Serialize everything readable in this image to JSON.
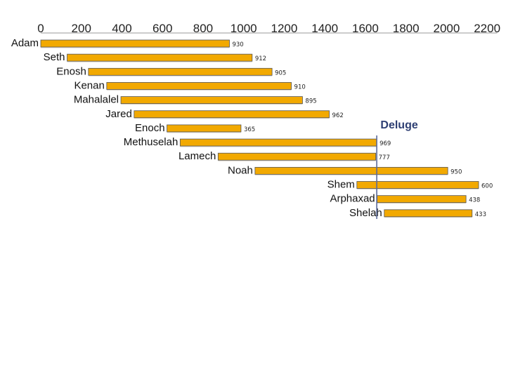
{
  "chart_data": {
    "type": "bar",
    "orientation": "horizontal-timeline",
    "title": "",
    "xlabel": "",
    "ylabel": "",
    "xlim": [
      0,
      2250
    ],
    "x_ticks": [
      "0",
      "200",
      "400",
      "600",
      "800",
      "1000",
      "1200",
      "1400",
      "1600",
      "1800",
      "2000",
      "2200"
    ],
    "x_tick_values": [
      0,
      200,
      400,
      600,
      800,
      1000,
      1200,
      1400,
      1600,
      1800,
      2000,
      2200
    ],
    "bar_color": "#f2a900",
    "bar_edge_color": "#555555",
    "event_line_color": "#5a6a9a",
    "series": [
      {
        "name": "Adam",
        "start": 0,
        "lifespan": 930,
        "label": "930"
      },
      {
        "name": "Seth",
        "start": 130,
        "lifespan": 912,
        "label": "912"
      },
      {
        "name": "Enosh",
        "start": 235,
        "lifespan": 905,
        "label": "905"
      },
      {
        "name": "Kenan",
        "start": 325,
        "lifespan": 910,
        "label": "910"
      },
      {
        "name": "Mahalalel",
        "start": 395,
        "lifespan": 895,
        "label": "895"
      },
      {
        "name": "Jared",
        "start": 460,
        "lifespan": 962,
        "label": "962"
      },
      {
        "name": "Enoch",
        "start": 622,
        "lifespan": 365,
        "label": "365"
      },
      {
        "name": "Methuselah",
        "start": 687,
        "lifespan": 969,
        "label": "969"
      },
      {
        "name": "Lamech",
        "start": 874,
        "lifespan": 777,
        "label": "777"
      },
      {
        "name": "Noah",
        "start": 1056,
        "lifespan": 950,
        "label": "950"
      },
      {
        "name": "Shem",
        "start": 1558,
        "lifespan": 600,
        "label": "600"
      },
      {
        "name": "Arphaxad",
        "start": 1658,
        "lifespan": 438,
        "label": "438"
      },
      {
        "name": "Shelah",
        "start": 1693,
        "lifespan": 433,
        "label": "433"
      }
    ],
    "annotations": [
      {
        "text": "Deluge",
        "x": 1656
      }
    ]
  }
}
